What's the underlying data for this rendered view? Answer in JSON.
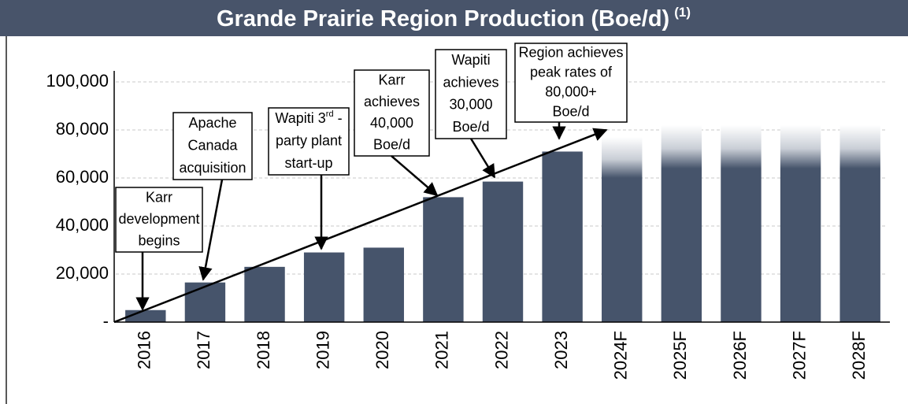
{
  "chart_data": {
    "type": "bar",
    "title": "Grande Prairie Region Production (Boe/d)",
    "title_note": "(1)",
    "categories": [
      "2016",
      "2017",
      "2018",
      "2019",
      "2020",
      "2021",
      "2022",
      "2023",
      "2024F",
      "2025F",
      "2026F",
      "2027F",
      "2028F"
    ],
    "values": [
      5000,
      16500,
      23000,
      29000,
      31000,
      52000,
      58500,
      71000,
      77000,
      82000,
      82000,
      82000,
      82000
    ],
    "forecast": [
      false,
      false,
      false,
      false,
      false,
      false,
      false,
      false,
      true,
      true,
      true,
      true,
      true
    ],
    "color": "#46546b",
    "ylim": [
      0,
      100000
    ],
    "yticks": [
      {
        "value": 0,
        "label": "-"
      },
      {
        "value": 20000,
        "label": "20,000"
      },
      {
        "value": 40000,
        "label": "40,000"
      },
      {
        "value": 60000,
        "label": "60,000"
      },
      {
        "value": 80000,
        "label": "80,000"
      },
      {
        "value": 100000,
        "label": "100,000"
      }
    ],
    "grid": true,
    "annotations": [
      {
        "lines": [
          [
            {
              "text": "Karr"
            }
          ],
          [
            {
              "text": "development"
            }
          ],
          [
            {
              "text": "begins"
            }
          ]
        ]
      },
      {
        "lines": [
          [
            {
              "text": "Apache"
            }
          ],
          [
            {
              "text": "Canada"
            }
          ],
          [
            {
              "text": "acquisition"
            }
          ]
        ]
      },
      {
        "lines": [
          [
            {
              "text": "Wapiti 3"
            },
            {
              "text": "rd",
              "sup": true
            },
            {
              "text": " -"
            }
          ],
          [
            {
              "text": "party plant"
            }
          ],
          [
            {
              "text": "start-up"
            }
          ]
        ]
      },
      {
        "lines": [
          [
            {
              "text": "Karr"
            }
          ],
          [
            {
              "text": "achieves"
            }
          ],
          [
            {
              "text": "40,000"
            }
          ],
          [
            {
              "text": "Boe/d"
            }
          ]
        ]
      },
      {
        "lines": [
          [
            {
              "text": "Wapiti"
            }
          ],
          [
            {
              "text": "achieves"
            }
          ],
          [
            {
              "text": "30,000"
            }
          ],
          [
            {
              "text": "Boe/d"
            }
          ]
        ]
      },
      {
        "lines": [
          [
            {
              "text": "Region achieves"
            }
          ],
          [
            {
              "text": "peak rates of"
            }
          ],
          [
            {
              "text": "80,000+"
            }
          ],
          [
            {
              "text": "Boe/d"
            }
          ]
        ]
      }
    ]
  }
}
